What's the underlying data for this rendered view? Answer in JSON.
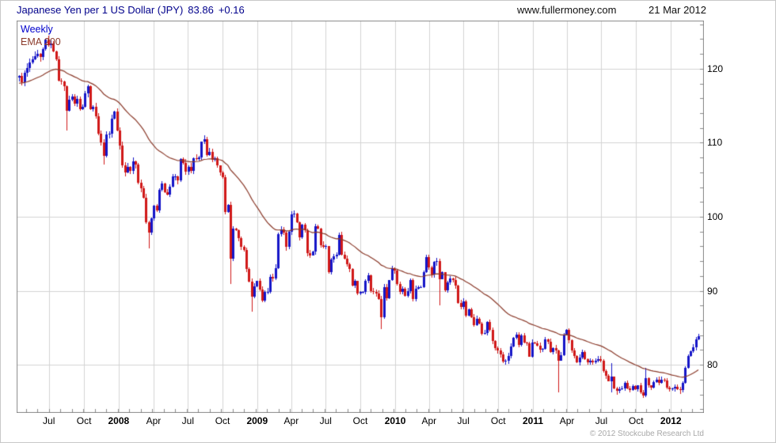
{
  "header": {
    "title": "Japanese Yen per 1 US Dollar (JPY)",
    "price": "83.86",
    "change": "+0.16",
    "site": "www.fullermoney.com",
    "date": "21 Mar 2012"
  },
  "chart": {
    "timeframe_label": "Weekly",
    "indicator_label": "EMA 200",
    "copyright": "© 2012 Stockcube Research Ltd"
  },
  "chart_data": {
    "type": "candlestick",
    "title": "Japanese Yen per 1 US Dollar (JPY) 83.86 +0.16",
    "timeframe": "Weekly",
    "last": 83.86,
    "change": 0.16,
    "ylim": [
      73.5,
      126.5
    ],
    "y_ticks": [
      120,
      110,
      100,
      90,
      80
    ],
    "y_minor_step": 2,
    "x_ticks": [
      {
        "label": "Jul",
        "week": 11.3
      },
      {
        "label": "Oct",
        "week": 24.6
      },
      {
        "label": "2008",
        "week": 37.7,
        "year": true
      },
      {
        "label": "Apr",
        "week": 50.9
      },
      {
        "label": "Jul",
        "week": 63.9
      },
      {
        "label": "Oct",
        "week": 77.0
      },
      {
        "label": "2009",
        "week": 90.1,
        "year": true
      },
      {
        "label": "Apr",
        "week": 103.0
      },
      {
        "label": "Jul",
        "week": 116.0
      },
      {
        "label": "Oct",
        "week": 129.1
      },
      {
        "label": "2010",
        "week": 142.3,
        "year": true
      },
      {
        "label": "Apr",
        "week": 155.1
      },
      {
        "label": "Jul",
        "week": 168.1
      },
      {
        "label": "Oct",
        "week": 181.3
      },
      {
        "label": "2011",
        "week": 194.4,
        "year": true
      },
      {
        "label": "Apr",
        "week": 207.3
      },
      {
        "label": "Jul",
        "week": 220.3
      },
      {
        "label": "Oct",
        "week": 233.4
      },
      {
        "label": "2012",
        "week": 246.6,
        "year": true
      }
    ],
    "first_open": 118.8,
    "closes": [
      119.0,
      118.2,
      119.4,
      120.1,
      120.8,
      121.3,
      121.7,
      122.0,
      121.6,
      122.7,
      123.9,
      123.2,
      123.4,
      122.3,
      121.3,
      118.4,
      118.3,
      117.6,
      114.3,
      115.8,
      116.2,
      115.3,
      115.9,
      114.5,
      114.8,
      116.7,
      117.6,
      114.5,
      114.8,
      113.6,
      111.2,
      110.0,
      108.2,
      111.1,
      111.2,
      113.3,
      114.2,
      111.7,
      109.6,
      106.9,
      106.0,
      106.7,
      106.2,
      107.5,
      107.0,
      104.6,
      103.8,
      102.6,
      99.3,
      97.9,
      99.8,
      101.5,
      100.9,
      103.6,
      104.5,
      103.3,
      103.0,
      104.1,
      105.4,
      105.5,
      104.9,
      107.8,
      107.3,
      106.1,
      106.7,
      106.2,
      107.9,
      107.8,
      108.0,
      110.1,
      110.5,
      108.3,
      108.8,
      107.7,
      107.9,
      106.9,
      106.0,
      105.3,
      100.6,
      101.6,
      94.3,
      98.4,
      98.2,
      97.1,
      95.9,
      95.5,
      92.9,
      91.2,
      89.2,
      90.6,
      91.3,
      90.2,
      88.7,
      89.8,
      89.9,
      91.9,
      91.7,
      93.1,
      97.6,
      98.3,
      97.9,
      95.9,
      98.0,
      100.3,
      100.4,
      99.2,
      97.2,
      98.9,
      98.2,
      95.1,
      94.8,
      95.3,
      98.7,
      98.4,
      96.2,
      95.9,
      96.0,
      92.5,
      94.2,
      94.7,
      94.9,
      97.5,
      94.9,
      94.3,
      93.6,
      93.0,
      90.7,
      91.3,
      89.6,
      89.8,
      89.8,
      91.3,
      92.1,
      90.0,
      89.9,
      89.6,
      88.9,
      86.4,
      90.5,
      89.0,
      91.4,
      92.9,
      92.7,
      90.9,
      89.9,
      90.3,
      89.3,
      90.0,
      91.5,
      88.9,
      90.3,
      90.5,
      90.5,
      92.5,
      94.6,
      93.2,
      92.2,
      93.9,
      94.0,
      91.6,
      92.5,
      90.1,
      91.1,
      91.7,
      91.5,
      90.7,
      88.4,
      87.8,
      88.6,
      86.6,
      87.5,
      86.4,
      85.4,
      86.2,
      85.6,
      84.2,
      84.3,
      85.8,
      84.7,
      83.2,
      82.3,
      81.9,
      81.4,
      80.4,
      80.5,
      81.2,
      82.5,
      83.6,
      84.1,
      82.7,
      84.0,
      83.0,
      82.9,
      81.1,
      83.0,
      82.9,
      82.6,
      82.1,
      82.2,
      83.4,
      83.1,
      81.7,
      82.3,
      81.9,
      80.6,
      81.3,
      84.1,
      84.7,
      83.3,
      81.9,
      81.2,
      80.3,
      81.0,
      81.7,
      80.8,
      80.3,
      80.5,
      80.3,
      80.6,
      80.8,
      80.6,
      79.2,
      78.5,
      77.8,
      78.4,
      76.8,
      76.5,
      76.7,
      76.8,
      77.6,
      76.8,
      76.6,
      77.1,
      76.7,
      77.2,
      76.3,
      75.8,
      78.2,
      77.2,
      76.9,
      77.7,
      78.0,
      77.6,
      78.0,
      77.9,
      76.9,
      76.7,
      76.8,
      77.0,
      76.7,
      76.6,
      77.6,
      79.6,
      81.2,
      81.8,
      82.4,
      83.4,
      83.86
    ],
    "wick_overrides": [
      {
        "i": 18,
        "low": 111.6
      },
      {
        "i": 32,
        "low": 107.1
      },
      {
        "i": 49,
        "low": 95.76
      },
      {
        "i": 80,
        "low": 90.93
      },
      {
        "i": 88,
        "low": 87.14
      },
      {
        "i": 137,
        "low": 84.83
      },
      {
        "i": 159,
        "low": 88.0
      },
      {
        "i": 177,
        "high": 85.93
      },
      {
        "i": 183,
        "low": 80.22
      },
      {
        "i": 204,
        "low": 76.25
      },
      {
        "i": 224,
        "high": 80.23,
        "low": 76.3
      },
      {
        "i": 226,
        "low": 75.94
      },
      {
        "i": 236,
        "low": 75.57
      },
      {
        "i": 237,
        "high": 79.55,
        "low": 75.6
      },
      {
        "i": 250,
        "low": 76.02
      },
      {
        "i": 257,
        "high": 84.18
      }
    ],
    "ema": {
      "label": "EMA 200",
      "period": 40,
      "seed": 118.0,
      "color": "#8b3a2a"
    },
    "colors": {
      "up": "#1515c8",
      "down": "#d01818",
      "grid": "#d4d4d4",
      "frame": "#8a8a8a"
    },
    "wick_scale": 0.5
  }
}
